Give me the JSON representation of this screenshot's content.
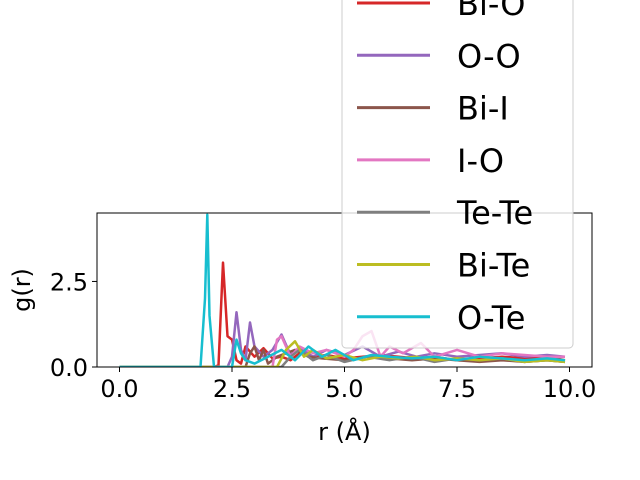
{
  "chart_data": {
    "type": "line",
    "xlabel": "r (Å)",
    "ylabel": "g(r)",
    "xlim": [
      -0.5,
      10.5
    ],
    "ylim": [
      0,
      4.5
    ],
    "xticks": [
      "0.0",
      "2.5",
      "5.0",
      "7.5",
      "10.0"
    ],
    "xtick_values": [
      0,
      2.5,
      5,
      7.5,
      10
    ],
    "yticks": [
      "0.0",
      "2.5"
    ],
    "ytick_values": [
      0,
      2.5
    ],
    "grid": false,
    "legend_position": "upper-right",
    "series": [
      {
        "name": "Bi-O",
        "color": "#d62728",
        "x": [
          0,
          2.1,
          2.2,
          2.3,
          2.4,
          2.5,
          2.6,
          2.7,
          2.8,
          3.0,
          3.2,
          3.4,
          3.6,
          3.8,
          4.0,
          4.3,
          4.6,
          5.0,
          5.4,
          5.8,
          6.2,
          6.6,
          7.0,
          7.5,
          8.0,
          8.5,
          9.0,
          9.5,
          9.9
        ],
        "y": [
          0,
          0,
          0.05,
          3.05,
          0.9,
          0.8,
          0.2,
          0.1,
          0.6,
          0.3,
          0.55,
          0.25,
          0.3,
          0.2,
          0.4,
          0.3,
          0.35,
          0.25,
          0.3,
          0.35,
          0.3,
          0.25,
          0.3,
          0.2,
          0.25,
          0.3,
          0.25,
          0.3,
          0.2
        ]
      },
      {
        "name": "O-O",
        "color": "#9467bd",
        "x": [
          0,
          2.4,
          2.5,
          2.6,
          2.7,
          2.8,
          2.9,
          3.0,
          3.2,
          3.4,
          3.6,
          3.8,
          4.0,
          4.3,
          4.6,
          5.0,
          5.4,
          5.8,
          6.2,
          6.6,
          7.0,
          7.5,
          8.0,
          8.5,
          9.0,
          9.5,
          9.9
        ],
        "y": [
          0,
          0,
          0.3,
          1.6,
          0.5,
          0.2,
          1.3,
          0.6,
          0.3,
          0.5,
          0.95,
          0.35,
          0.55,
          0.3,
          0.5,
          0.35,
          0.6,
          0.3,
          0.45,
          0.3,
          0.4,
          0.3,
          0.35,
          0.4,
          0.3,
          0.35,
          0.3
        ]
      },
      {
        "name": "Bi-I",
        "color": "#8c564b",
        "x": [
          0,
          2.8,
          2.9,
          3.0,
          3.1,
          3.2,
          3.3,
          3.5,
          3.7,
          3.9,
          4.2,
          4.5,
          5.0,
          5.5,
          6.0,
          6.5,
          7.0,
          7.5,
          8.0,
          8.5,
          9.0,
          9.5,
          9.9
        ],
        "y": [
          0,
          0,
          0.4,
          0.6,
          0.2,
          0.5,
          0.1,
          0.3,
          0.4,
          0.5,
          0.3,
          0.25,
          0.2,
          0.3,
          0.25,
          0.2,
          0.25,
          0.2,
          0.15,
          0.2,
          0.15,
          0.2,
          0.15
        ]
      },
      {
        "name": "I-O",
        "color": "#e377c2",
        "x": [
          0,
          3.4,
          3.5,
          3.6,
          3.8,
          4.0,
          4.3,
          4.6,
          5.0,
          5.2,
          5.4,
          5.6,
          5.8,
          6.0,
          6.3,
          6.7,
          7.0,
          7.5,
          8.0,
          8.5,
          9.0,
          9.5,
          9.9
        ],
        "y": [
          0,
          0,
          0.8,
          0.9,
          0.3,
          0.6,
          0.4,
          0.5,
          0.3,
          0.5,
          0.9,
          1.05,
          0.3,
          0.6,
          0.4,
          0.7,
          0.3,
          0.5,
          0.3,
          0.4,
          0.35,
          0.3,
          0.3
        ]
      },
      {
        "name": "Te-Te",
        "color": "#7f7f7f",
        "x": [
          0,
          3.6,
          3.8,
          4.0,
          4.3,
          4.6,
          5.0,
          5.5,
          6.0,
          6.5,
          7.0,
          7.5,
          8.0,
          8.5,
          9.0,
          9.5,
          9.9
        ],
        "y": [
          0,
          0,
          0.3,
          0.5,
          0.2,
          0.35,
          0.15,
          0.3,
          0.2,
          0.3,
          0.15,
          0.25,
          0.2,
          0.25,
          0.15,
          0.2,
          0.15
        ]
      },
      {
        "name": "Bi-Te",
        "color": "#bcbd22",
        "x": [
          0,
          3.5,
          3.7,
          3.9,
          4.1,
          4.3,
          4.6,
          5.0,
          5.4,
          5.8,
          6.2,
          6.6,
          7.0,
          7.5,
          8.0,
          8.5,
          9.0,
          9.5,
          9.9
        ],
        "y": [
          0,
          0,
          0.5,
          0.75,
          0.3,
          0.5,
          0.25,
          0.35,
          0.2,
          0.3,
          0.25,
          0.3,
          0.2,
          0.25,
          0.2,
          0.25,
          0.15,
          0.2,
          0.15
        ]
      },
      {
        "name": "O-Te",
        "color": "#17becf",
        "x": [
          0,
          1.8,
          1.9,
          1.95,
          2.0,
          2.1,
          2.5,
          2.6,
          2.7,
          2.8,
          3.0,
          3.3,
          3.6,
          3.9,
          4.2,
          4.5,
          4.8,
          5.2,
          5.6,
          6.0,
          6.5,
          7.0,
          7.5,
          8.0,
          8.5,
          9.0,
          9.5,
          9.9
        ],
        "y": [
          0,
          0,
          2.0,
          4.45,
          1.5,
          0,
          0,
          0.8,
          0.4,
          0.2,
          0.1,
          0.3,
          0.5,
          0.2,
          0.6,
          0.3,
          0.5,
          0.2,
          0.35,
          0.3,
          0.25,
          0.3,
          0.2,
          0.3,
          0.25,
          0.2,
          0.25,
          0.2
        ]
      }
    ]
  }
}
